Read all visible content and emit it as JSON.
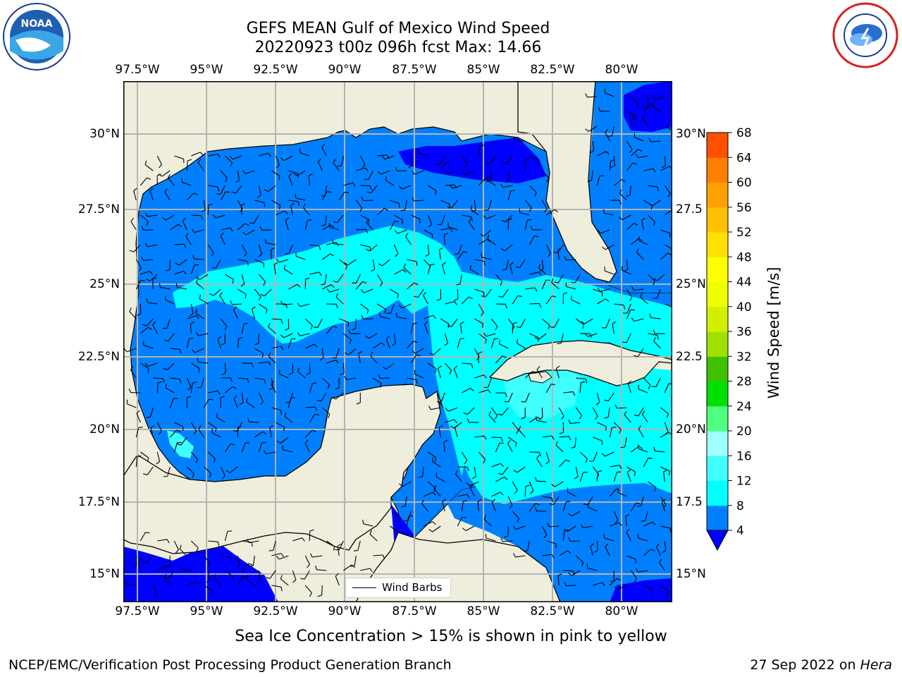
{
  "header": {
    "title_line1": "GEFS MEAN Gulf of Mexico Wind Speed",
    "title_line2": "20220923 t00z 096h fcst   Max: 14.66"
  },
  "logos": {
    "left": "NOAA",
    "right": "NATIONAL WEATHER SERVICE"
  },
  "axes": {
    "lon_labels": [
      "97.5°W",
      "95°W",
      "92.5°W",
      "90°W",
      "87.5°W",
      "85°W",
      "82.5°W",
      "80°W"
    ],
    "lat_labels_left": [
      "30°N",
      "27.5°N",
      "25°N",
      "22.5°N",
      "20°N",
      "17.5°N",
      "15°N"
    ],
    "lat_labels_right": [
      "30°N",
      "27.5",
      "25°N",
      "22.5",
      "20°N",
      "17.5",
      "15°N"
    ]
  },
  "colorbar": {
    "label": "Wind Speed [m/s]",
    "ticks": [
      "4",
      "8",
      "12",
      "16",
      "20",
      "24",
      "28",
      "32",
      "36",
      "40",
      "44",
      "48",
      "52",
      "56",
      "60",
      "64",
      "68"
    ],
    "colors": [
      "#0080ff",
      "#00ffff",
      "#40ffff",
      "#a0ffff",
      "#50ff80",
      "#00e000",
      "#40c000",
      "#a0e000",
      "#d0f000",
      "#f0ff00",
      "#ffff00",
      "#ffe000",
      "#ffc000",
      "#ffa000",
      "#ff8000",
      "#ff5000",
      "#ff2000",
      "#ff0000"
    ],
    "extend_color": "#0000ff"
  },
  "legend": {
    "label": "Wind Barbs"
  },
  "note": "Sea Ice Concentration > 15% is shown in pink to yellow",
  "footer": {
    "left": "NCEP/EMC/Verification Post Processing Product Generation Branch",
    "right_date": "27 Sep 2022 on ",
    "right_host": "Hera"
  },
  "colors": {
    "land": "#efeedc",
    "wind_4_8": "#0080ff",
    "wind_8_12": "#00ffff",
    "wind_12_16": "#40ffff",
    "wind_below_4": "#0000ff",
    "grid": "#b4b4b4"
  },
  "map_extent": {
    "lon": [
      -98,
      -78
    ],
    "lat": [
      14,
      31.5
    ]
  }
}
